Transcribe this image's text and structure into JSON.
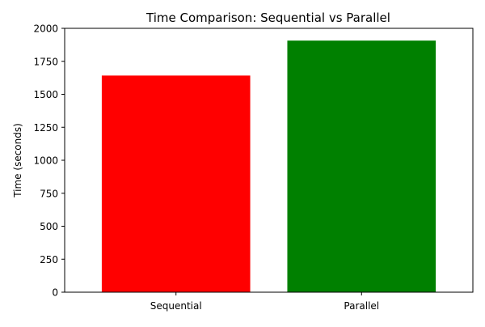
{
  "chart_data": {
    "type": "bar",
    "title": "Time Comparison: Sequential vs Parallel",
    "xlabel": "",
    "ylabel": "Time (seconds)",
    "categories": [
      "Sequential",
      "Parallel"
    ],
    "values": [
      1642,
      1907
    ],
    "colors": [
      "#ff0000",
      "#008000"
    ],
    "ylim": [
      0,
      2000
    ],
    "yticks": [
      0,
      250,
      500,
      750,
      1000,
      1250,
      1500,
      1750,
      2000
    ],
    "ytick_labels": [
      "0",
      "250",
      "500",
      "750",
      "1000",
      "1250",
      "1500",
      "1750",
      "2000"
    ],
    "grid": false,
    "legend": "none"
  }
}
